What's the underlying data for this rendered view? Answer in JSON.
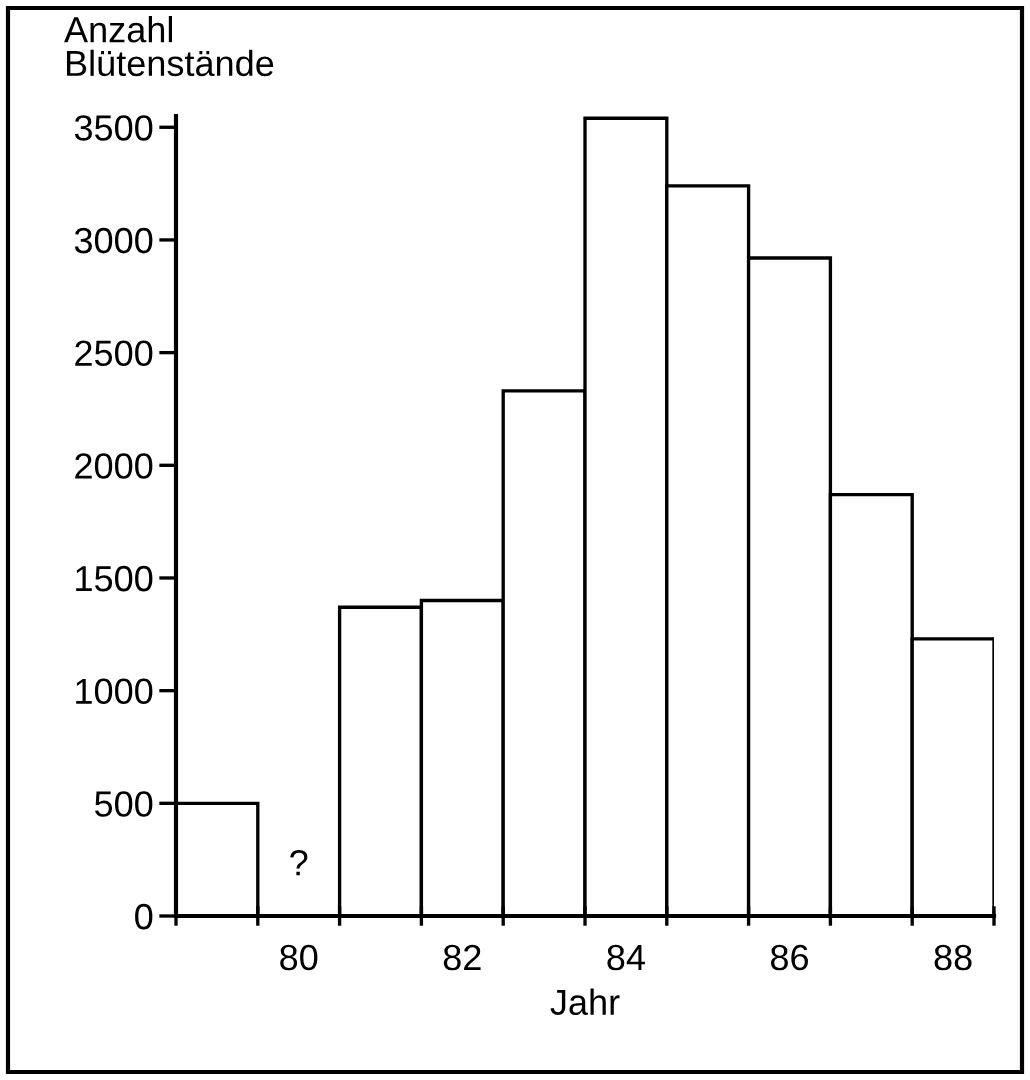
{
  "chart_data": {
    "type": "bar",
    "ylabel": "Anzahl\nBlütenstände",
    "xlabel": "Jahr",
    "categories": [
      null,
      "80",
      null,
      "82",
      null,
      "84",
      null,
      "86",
      null,
      "88"
    ],
    "values": [
      500,
      null,
      1370,
      1400,
      2330,
      3540,
      3240,
      2920,
      1870,
      1230
    ],
    "color": "#ffffff",
    "ylim": [
      0,
      3550
    ],
    "yticks": [
      0,
      500,
      1000,
      1500,
      2000,
      2500,
      3000,
      3500
    ],
    "grid": false,
    "legend": false,
    "annotations": [
      "?"
    ]
  }
}
